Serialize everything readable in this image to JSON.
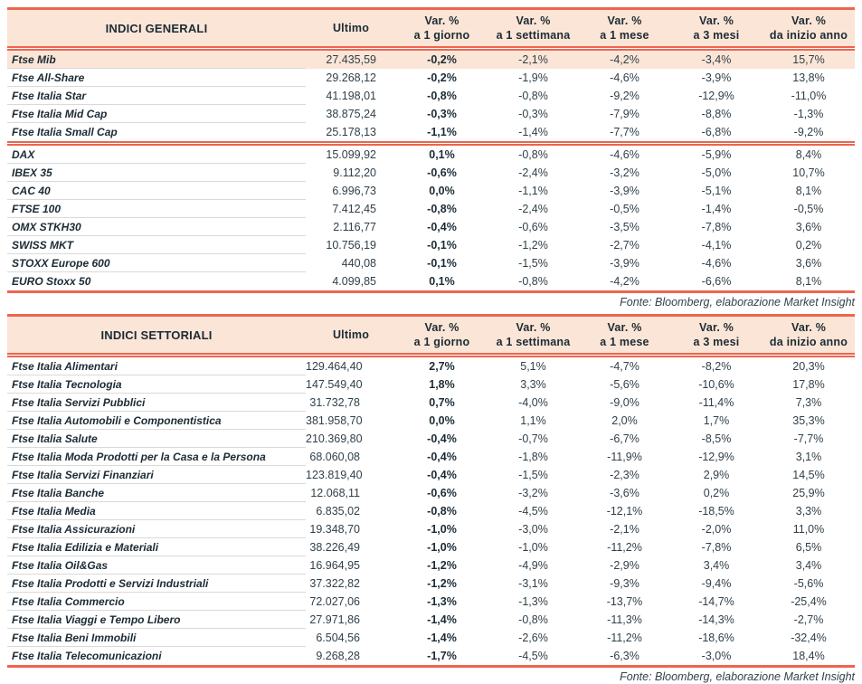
{
  "colors": {
    "accent": "#ED654E",
    "header_bg": "#FBE5D6",
    "highlight_bg": "#FBE5D6",
    "text": "#1C2B35",
    "row_line": "#D9D9D9"
  },
  "tables": [
    {
      "title": "INDICI GENERALI",
      "value_header": "Ultimo",
      "var_headers": [
        [
          "Var. %",
          "a 1 giorno"
        ],
        [
          "Var. %",
          "a 1 settimana"
        ],
        [
          "Var. %",
          "a 1 mese"
        ],
        [
          "Var. %",
          "a 3 mesi"
        ],
        [
          "Var. %",
          "da inizio anno"
        ]
      ],
      "source": "Fonte: Bloomberg, elaborazione Market Insight",
      "groups": [
        {
          "rows": [
            {
              "name": "Ftse Mib",
              "ultimo": "27.435,59",
              "vars": [
                "-0,2%",
                "-2,1%",
                "-4,2%",
                "-3,4%",
                "15,7%"
              ],
              "highlight": true
            },
            {
              "name": "Ftse All-Share",
              "ultimo": "29.268,12",
              "vars": [
                "-0,2%",
                "-1,9%",
                "-4,6%",
                "-3,9%",
                "13,8%"
              ],
              "highlight": false
            },
            {
              "name": "Ftse Italia Star",
              "ultimo": "41.198,01",
              "vars": [
                "-0,8%",
                "-0,8%",
                "-9,2%",
                "-12,9%",
                "-11,0%"
              ],
              "highlight": false
            },
            {
              "name": "Ftse Italia Mid Cap",
              "ultimo": "38.875,24",
              "vars": [
                "-0,3%",
                "-0,3%",
                "-7,9%",
                "-8,8%",
                "-1,3%"
              ],
              "highlight": false
            },
            {
              "name": "Ftse Italia Small Cap",
              "ultimo": "25.178,13",
              "vars": [
                "-1,1%",
                "-1,4%",
                "-7,7%",
                "-6,8%",
                "-9,2%"
              ],
              "highlight": false
            }
          ]
        },
        {
          "rows": [
            {
              "name": "DAX",
              "ultimo": "15.099,92",
              "vars": [
                "0,1%",
                "-0,8%",
                "-4,6%",
                "-5,9%",
                "8,4%"
              ],
              "highlight": false
            },
            {
              "name": "IBEX 35",
              "ultimo": "9.112,20",
              "vars": [
                "-0,6%",
                "-2,4%",
                "-3,2%",
                "-5,0%",
                "10,7%"
              ],
              "highlight": false
            },
            {
              "name": "CAC 40",
              "ultimo": "6.996,73",
              "vars": [
                "0,0%",
                "-1,1%",
                "-3,9%",
                "-5,1%",
                "8,1%"
              ],
              "highlight": false
            },
            {
              "name": "FTSE 100",
              "ultimo": "7.412,45",
              "vars": [
                "-0,8%",
                "-2,4%",
                "-0,5%",
                "-1,4%",
                "-0,5%"
              ],
              "highlight": false
            },
            {
              "name": "OMX STKH30",
              "ultimo": "2.116,77",
              "vars": [
                "-0,4%",
                "-0,6%",
                "-3,5%",
                "-7,8%",
                "3,6%"
              ],
              "highlight": false
            },
            {
              "name": "SWISS MKT",
              "ultimo": "10.756,19",
              "vars": [
                "-0,1%",
                "-1,2%",
                "-2,7%",
                "-4,1%",
                "0,2%"
              ],
              "highlight": false
            },
            {
              "name": "STOXX Europe 600",
              "ultimo": "440,08",
              "vars": [
                "-0,1%",
                "-1,5%",
                "-3,9%",
                "-4,6%",
                "3,6%"
              ],
              "highlight": false
            },
            {
              "name": "EURO Stoxx 50",
              "ultimo": "4.099,85",
              "vars": [
                "0,1%",
                "-0,8%",
                "-4,2%",
                "-6,6%",
                "8,1%"
              ],
              "highlight": false
            }
          ]
        }
      ]
    },
    {
      "title": "INDICI SETTORIALI",
      "value_header": "Ultimo",
      "var_headers": [
        [
          "Var. %",
          "a 1 giorno"
        ],
        [
          "Var. %",
          "a 1 settimana"
        ],
        [
          "Var. %",
          "a 1 mese"
        ],
        [
          "Var. %",
          "a 3 mesi"
        ],
        [
          "Var. %",
          "da inizio anno"
        ]
      ],
      "source": "Fonte: Bloomberg, elaborazione Market Insight",
      "groups": [
        {
          "rows": [
            {
              "name": "Ftse Italia Alimentari",
              "ultimo": "129.464,40",
              "vars": [
                "2,7%",
                "5,1%",
                "-4,7%",
                "-8,2%",
                "20,3%"
              ],
              "highlight": false
            },
            {
              "name": "Ftse Italia Tecnologia",
              "ultimo": "147.549,40",
              "vars": [
                "1,8%",
                "3,3%",
                "-5,6%",
                "-10,6%",
                "17,8%"
              ],
              "highlight": false
            },
            {
              "name": "Ftse Italia Servizi Pubblici",
              "ultimo": "31.732,78",
              "vars": [
                "0,7%",
                "-4,0%",
                "-9,0%",
                "-11,4%",
                "7,3%"
              ],
              "highlight": false
            },
            {
              "name": "Ftse Italia Automobili e Componentistica",
              "ultimo": "381.958,70",
              "vars": [
                "0,0%",
                "1,1%",
                "2,0%",
                "1,7%",
                "35,3%"
              ],
              "highlight": false
            },
            {
              "name": "Ftse Italia Salute",
              "ultimo": "210.369,80",
              "vars": [
                "-0,4%",
                "-0,7%",
                "-6,7%",
                "-8,5%",
                "-7,7%"
              ],
              "highlight": false
            },
            {
              "name": "Ftse Italia Moda Prodotti per la Casa e la Persona",
              "ultimo": "68.060,08",
              "vars": [
                "-0,4%",
                "-1,8%",
                "-11,9%",
                "-12,9%",
                "3,1%"
              ],
              "highlight": false
            },
            {
              "name": "Ftse Italia Servizi Finanziari",
              "ultimo": "123.819,40",
              "vars": [
                "-0,4%",
                "-1,5%",
                "-2,3%",
                "2,9%",
                "14,5%"
              ],
              "highlight": false
            },
            {
              "name": "Ftse Italia Banche",
              "ultimo": "12.068,11",
              "vars": [
                "-0,6%",
                "-3,2%",
                "-3,6%",
                "0,2%",
                "25,9%"
              ],
              "highlight": false
            },
            {
              "name": "Ftse Italia Media",
              "ultimo": "6.835,02",
              "vars": [
                "-0,8%",
                "-4,5%",
                "-12,1%",
                "-18,5%",
                "3,3%"
              ],
              "highlight": false
            },
            {
              "name": "Ftse Italia Assicurazioni",
              "ultimo": "19.348,70",
              "vars": [
                "-1,0%",
                "-3,0%",
                "-2,1%",
                "-2,0%",
                "11,0%"
              ],
              "highlight": false
            },
            {
              "name": "Ftse Italia Edilizia e Materiali",
              "ultimo": "38.226,49",
              "vars": [
                "-1,0%",
                "-1,0%",
                "-11,2%",
                "-7,8%",
                "6,5%"
              ],
              "highlight": false
            },
            {
              "name": "Ftse Italia Oil&Gas",
              "ultimo": "16.964,95",
              "vars": [
                "-1,2%",
                "-4,9%",
                "-2,9%",
                "3,4%",
                "3,4%"
              ],
              "highlight": false
            },
            {
              "name": "Ftse Italia Prodotti e Servizi Industriali",
              "ultimo": "37.322,82",
              "vars": [
                "-1,2%",
                "-3,1%",
                "-9,3%",
                "-9,4%",
                "-5,6%"
              ],
              "highlight": false
            },
            {
              "name": "Ftse Italia Commercio",
              "ultimo": "72.027,06",
              "vars": [
                "-1,3%",
                "-1,3%",
                "-13,7%",
                "-14,7%",
                "-25,4%"
              ],
              "highlight": false
            },
            {
              "name": "Ftse Italia Viaggi e Tempo Libero",
              "ultimo": "27.971,86",
              "vars": [
                "-1,4%",
                "-0,8%",
                "-11,3%",
                "-14,3%",
                "-2,7%"
              ],
              "highlight": false
            },
            {
              "name": "Ftse Italia Beni Immobili",
              "ultimo": "6.504,56",
              "vars": [
                "-1,4%",
                "-2,6%",
                "-11,2%",
                "-18,6%",
                "-32,4%"
              ],
              "highlight": false
            },
            {
              "name": "Ftse Italia Telecomunicazioni",
              "ultimo": "9.268,28",
              "vars": [
                "-1,7%",
                "-4,5%",
                "-6,3%",
                "-3,0%",
                "18,4%"
              ],
              "highlight": false
            }
          ]
        }
      ]
    }
  ]
}
